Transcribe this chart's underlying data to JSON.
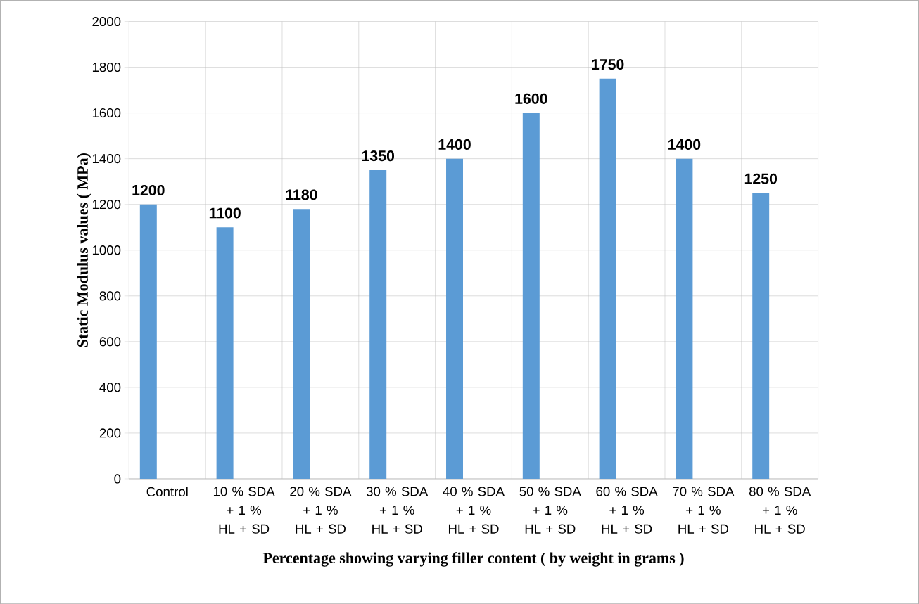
{
  "chart_data": {
    "type": "bar",
    "xlabel": "Percentage  showing varying filler content  (  by weight  in grams )",
    "ylabel": "Static Modulus   values ( MPa)",
    "categories": [
      "Control",
      "10 % SDA + 1 % HL + SD",
      "20 % SDA + 1 % HL + SD",
      "30 % SDA + 1 % HL + SD",
      "40 % SDA + 1 % HL + SD",
      "50 % SDA + 1 % HL + SD",
      "60 % SDA + 1 % HL + SD",
      "70 % SDA + 1 % HL + SD",
      "80 % SDA + 1 % HL + SD"
    ],
    "values": [
      1200,
      1100,
      1180,
      1350,
      1400,
      1600,
      1750,
      1400,
      1250
    ],
    "color": "#5b9bd5",
    "ylim": [
      0,
      2000
    ],
    "yticks": [
      0,
      200,
      400,
      600,
      800,
      1000,
      1200,
      1400,
      1600,
      1800,
      2000
    ],
    "grid": true,
    "data_labels": true
  }
}
